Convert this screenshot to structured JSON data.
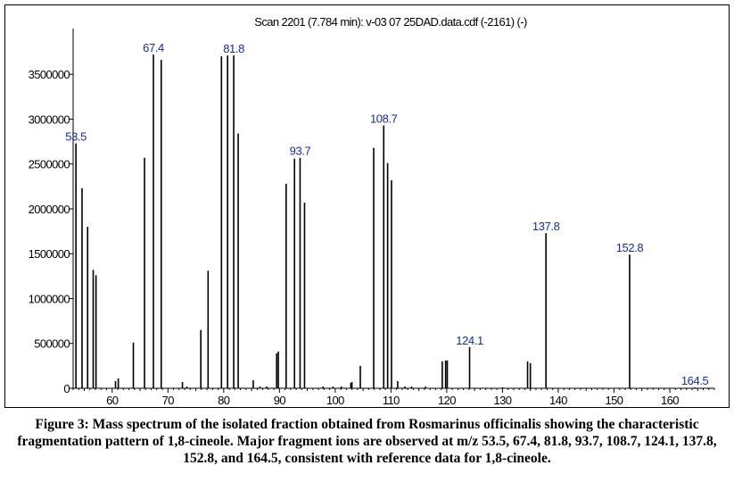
{
  "chart_data": {
    "type": "bar",
    "title": "Scan 2201 (7.784 min): v-03 07 25DAD.data.cdf (-2161) (-)",
    "xlabel": "",
    "ylabel": "",
    "xlim": [
      53,
      168
    ],
    "ylim": [
      0,
      3950000
    ],
    "x_ticks": [
      60,
      70,
      80,
      90,
      100,
      110,
      120,
      130,
      140,
      150,
      160
    ],
    "x_tick_labels": [
      "60",
      "70",
      "80",
      "90",
      "100",
      "110",
      "120",
      "130",
      "140",
      "150",
      "160"
    ],
    "y_ticks": [
      0,
      500000,
      1000000,
      1500000,
      2000000,
      2500000,
      3000000,
      3500000
    ],
    "y_tick_labels": [
      "0",
      "500000",
      "1000000",
      "1500000",
      "2000000",
      "2500000",
      "3000000",
      "3500000"
    ],
    "grid": false,
    "bar_color": "#000000",
    "label_color": "#1a2a9a",
    "peaks": [
      {
        "x": 53.5,
        "y": 2730000
      },
      {
        "x": 54.6,
        "y": 2230000
      },
      {
        "x": 55.6,
        "y": 1800000
      },
      {
        "x": 56.6,
        "y": 1320000
      },
      {
        "x": 57.1,
        "y": 1260000
      },
      {
        "x": 60.6,
        "y": 80000
      },
      {
        "x": 61.1,
        "y": 110000
      },
      {
        "x": 63.8,
        "y": 510000
      },
      {
        "x": 65.8,
        "y": 2570000
      },
      {
        "x": 67.4,
        "y": 3720000
      },
      {
        "x": 68.8,
        "y": 3660000
      },
      {
        "x": 72.6,
        "y": 70000
      },
      {
        "x": 73.4,
        "y": 20000
      },
      {
        "x": 75.9,
        "y": 650000
      },
      {
        "x": 77.2,
        "y": 1310000
      },
      {
        "x": 79.6,
        "y": 3700000
      },
      {
        "x": 80.7,
        "y": 3710000
      },
      {
        "x": 81.8,
        "y": 3710000
      },
      {
        "x": 82.6,
        "y": 2840000
      },
      {
        "x": 85.3,
        "y": 90000
      },
      {
        "x": 86.5,
        "y": 20000
      },
      {
        "x": 87.7,
        "y": 20000
      },
      {
        "x": 89.5,
        "y": 390000
      },
      {
        "x": 89.8,
        "y": 410000
      },
      {
        "x": 91.2,
        "y": 2280000
      },
      {
        "x": 92.7,
        "y": 2560000
      },
      {
        "x": 93.7,
        "y": 2570000
      },
      {
        "x": 94.5,
        "y": 2070000
      },
      {
        "x": 97.8,
        "y": 20000
      },
      {
        "x": 99.6,
        "y": 20000
      },
      {
        "x": 101.1,
        "y": 20000
      },
      {
        "x": 102.8,
        "y": 60000
      },
      {
        "x": 103.0,
        "y": 70000
      },
      {
        "x": 104.5,
        "y": 250000
      },
      {
        "x": 106.9,
        "y": 2680000
      },
      {
        "x": 108.7,
        "y": 2930000
      },
      {
        "x": 109.4,
        "y": 2510000
      },
      {
        "x": 110.1,
        "y": 2320000
      },
      {
        "x": 111.2,
        "y": 80000
      },
      {
        "x": 112.5,
        "y": 20000
      },
      {
        "x": 113.7,
        "y": 20000
      },
      {
        "x": 116.2,
        "y": 20000
      },
      {
        "x": 119.2,
        "y": 300000
      },
      {
        "x": 119.8,
        "y": 310000
      },
      {
        "x": 120.1,
        "y": 310000
      },
      {
        "x": 124.1,
        "y": 460000
      },
      {
        "x": 130.0,
        "y": 10000
      },
      {
        "x": 134.5,
        "y": 300000
      },
      {
        "x": 135.0,
        "y": 280000
      },
      {
        "x": 137.8,
        "y": 1730000
      },
      {
        "x": 152.8,
        "y": 1490000
      },
      {
        "x": 164.5,
        "y": 10000
      }
    ],
    "peak_labels": [
      {
        "x": 53.5,
        "y": 2730000,
        "text": "53.5"
      },
      {
        "x": 67.4,
        "y": 3720000,
        "text": "67.4"
      },
      {
        "x": 81.8,
        "y": 3710000,
        "text": "81.8"
      },
      {
        "x": 93.7,
        "y": 2570000,
        "text": "93.7"
      },
      {
        "x": 108.7,
        "y": 2930000,
        "text": "108.7"
      },
      {
        "x": 124.1,
        "y": 460000,
        "text": "124.1"
      },
      {
        "x": 137.8,
        "y": 1730000,
        "text": "137.8"
      },
      {
        "x": 152.8,
        "y": 1490000,
        "text": "152.8"
      },
      {
        "x": 164.5,
        "y": 10000,
        "text": "164.5"
      }
    ]
  },
  "caption": "Figure 3: Mass spectrum of the isolated fraction obtained from Rosmarinus officinalis showing the characteristic fragmentation pattern of 1,8-cineole. Major fragment ions are observed at m/z 53.5, 67.4, 81.8, 93.7, 108.7, 124.1, 137.8, 152.8, and 164.5, consistent with reference data for 1,8-cineole."
}
